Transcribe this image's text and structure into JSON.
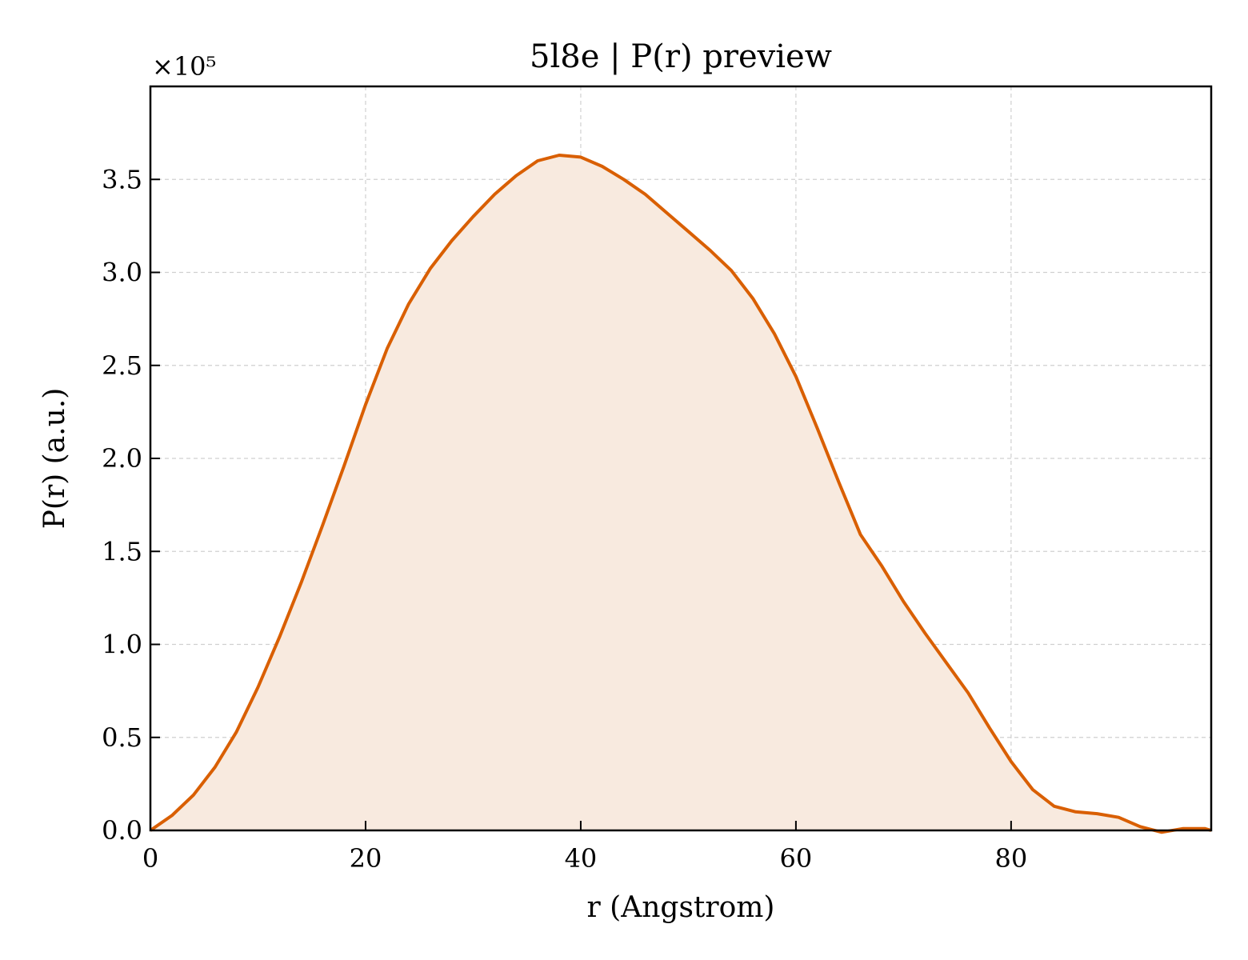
{
  "chart_data": {
    "type": "area",
    "title": "5l8e | P(r) preview",
    "xlabel": "r (Angstrom)",
    "ylabel": "P(r) (a.u.)",
    "y_multiplier": "×10⁵",
    "xlim": [
      0,
      98.6
    ],
    "ylim": [
      0,
      4.0
    ],
    "xticks": [
      0,
      20,
      40,
      60,
      80
    ],
    "xtick_labels": [
      "0",
      "20",
      "40",
      "60",
      "80"
    ],
    "yticks": [
      0.0,
      0.5,
      1.0,
      1.5,
      2.0,
      2.5,
      3.0,
      3.5
    ],
    "ytick_labels": [
      "0.0",
      "0.5",
      "1.0",
      "1.5",
      "2.0",
      "2.5",
      "3.0",
      "3.5"
    ],
    "grid": true,
    "line_color": "#d95f02",
    "fill_color": "#f8eadf",
    "series": [
      {
        "x": [
          0,
          2,
          4,
          6,
          8,
          10,
          12,
          14,
          16,
          18,
          20,
          22,
          24,
          26,
          28,
          30,
          32,
          34,
          36,
          38,
          40,
          42,
          44,
          46,
          48,
          50,
          52,
          54,
          56,
          58,
          60,
          62,
          64,
          66,
          68,
          70,
          72,
          74,
          76,
          78,
          80,
          82,
          84,
          86,
          88,
          90,
          92,
          94,
          96,
          98,
          98.6
        ],
        "y": [
          0.0,
          0.08,
          0.19,
          0.34,
          0.53,
          0.77,
          1.04,
          1.33,
          1.64,
          1.96,
          2.29,
          2.59,
          2.83,
          3.02,
          3.17,
          3.3,
          3.42,
          3.52,
          3.6,
          3.63,
          3.62,
          3.57,
          3.5,
          3.42,
          3.32,
          3.22,
          3.12,
          3.01,
          2.86,
          2.67,
          2.44,
          2.16,
          1.87,
          1.59,
          1.42,
          1.23,
          1.06,
          0.9,
          0.74,
          0.55,
          0.37,
          0.22,
          0.13,
          0.1,
          0.09,
          0.07,
          0.02,
          -0.01,
          0.01,
          0.01,
          0.0
        ]
      }
    ]
  }
}
